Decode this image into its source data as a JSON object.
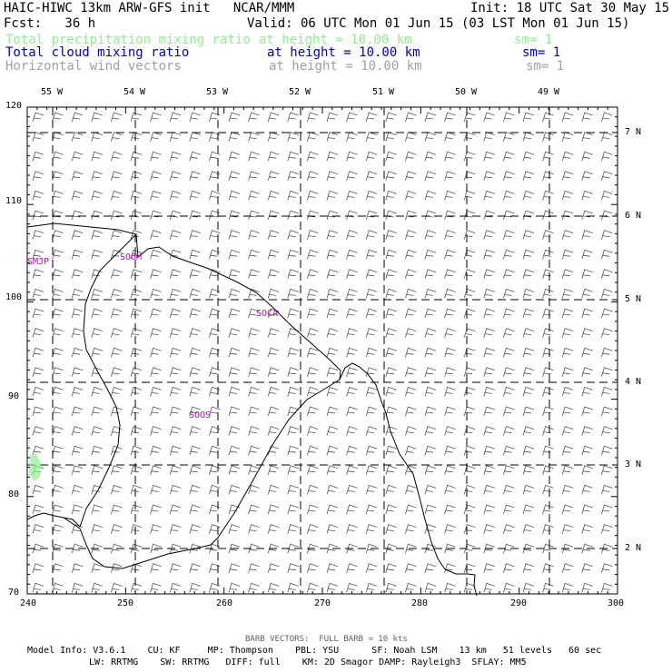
{
  "header": {
    "title": "HAIC-HIWC 13km ARW-GFS init   NCAR/MMM",
    "init": "Init: 18 UTC Sat 30 May 15",
    "fcst": "Fcst:   36 h",
    "valid": "Valid: 06 UTC Mon 01 Jun 15 (03 LST Mon 01 Jun 15)"
  },
  "fields": [
    {
      "name": "Total precipitation mixing ratio",
      "level": "at height = 10.00 km",
      "sm": "sm= 1",
      "color": "#90ee90"
    },
    {
      "name": "Total cloud mixing ratio",
      "level": "at height = 10.00 km",
      "sm": "sm= 1",
      "color": "#0000c8"
    },
    {
      "name": "Horizontal wind vectors",
      "level": "at height = 10.00 km",
      "sm": "sm= 1",
      "color": "#a0a0a0"
    }
  ],
  "axes": {
    "x_ticks": [
      "240",
      "250",
      "260",
      "270",
      "280",
      "290",
      "300"
    ],
    "y_ticks": [
      "120",
      "110",
      "100",
      "90",
      "80",
      "70"
    ],
    "lon_labels": [
      "55 W",
      "54 W",
      "53 W",
      "52 W",
      "51 W",
      "50 W",
      "49 W"
    ],
    "lat_labels": [
      "7 N",
      "6 N",
      "5 N",
      "4 N",
      "3 N",
      "2 N"
    ]
  },
  "stations": [
    "SMJP",
    "SOCA",
    "SOOS",
    "SOOM"
  ],
  "footer": {
    "barb": "BARB VECTORS:  FULL BARB = 10 kts",
    "model_line1": "Model Info: V3.6.1    CU: KF     MP: Thompson    PBL: YSU      SF: Noah LSM    13 km   51 levels   60 sec",
    "model_line2": "LW: RRTMG    SW: RRTMG   DIFF: full    KM: 2D Smagor DAMP: Rayleigh3  SFLAY: MM5"
  },
  "colors": {
    "station": "#c000c0",
    "coast": "#000000",
    "barb": "#555555",
    "precip": "#90ee90"
  }
}
